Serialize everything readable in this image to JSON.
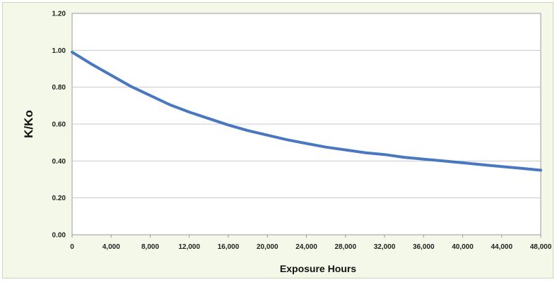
{
  "chart_data": {
    "type": "line",
    "title": "",
    "xlabel": "Exposure Hours",
    "ylabel": "K/Ko",
    "xlim": [
      0,
      48000
    ],
    "ylim": [
      0,
      1.2
    ],
    "grid": "horizontal",
    "legend": "none",
    "x_ticks": [
      "0",
      "4,000",
      "8,000",
      "12,000",
      "16,000",
      "20,000",
      "24,000",
      "28,000",
      "32,000",
      "36,000",
      "40,000",
      "44,000",
      "48,000"
    ],
    "y_ticks": [
      "0.00",
      "0.20",
      "0.40",
      "0.60",
      "0.80",
      "1.00",
      "1.20"
    ],
    "series": [
      {
        "color": "#4a78c0",
        "x": [
          0,
          2000,
          4000,
          6000,
          8000,
          10000,
          12000,
          14000,
          16000,
          18000,
          20000,
          22000,
          24000,
          26000,
          28000,
          30000,
          32000,
          34000,
          36000,
          38000,
          40000,
          42000,
          44000,
          46000,
          48000
        ],
        "y": [
          0.99,
          0.925,
          0.865,
          0.805,
          0.755,
          0.705,
          0.665,
          0.63,
          0.595,
          0.565,
          0.54,
          0.515,
          0.495,
          0.475,
          0.46,
          0.445,
          0.435,
          0.42,
          0.41,
          0.4,
          0.39,
          0.38,
          0.37,
          0.36,
          0.35
        ]
      }
    ]
  }
}
